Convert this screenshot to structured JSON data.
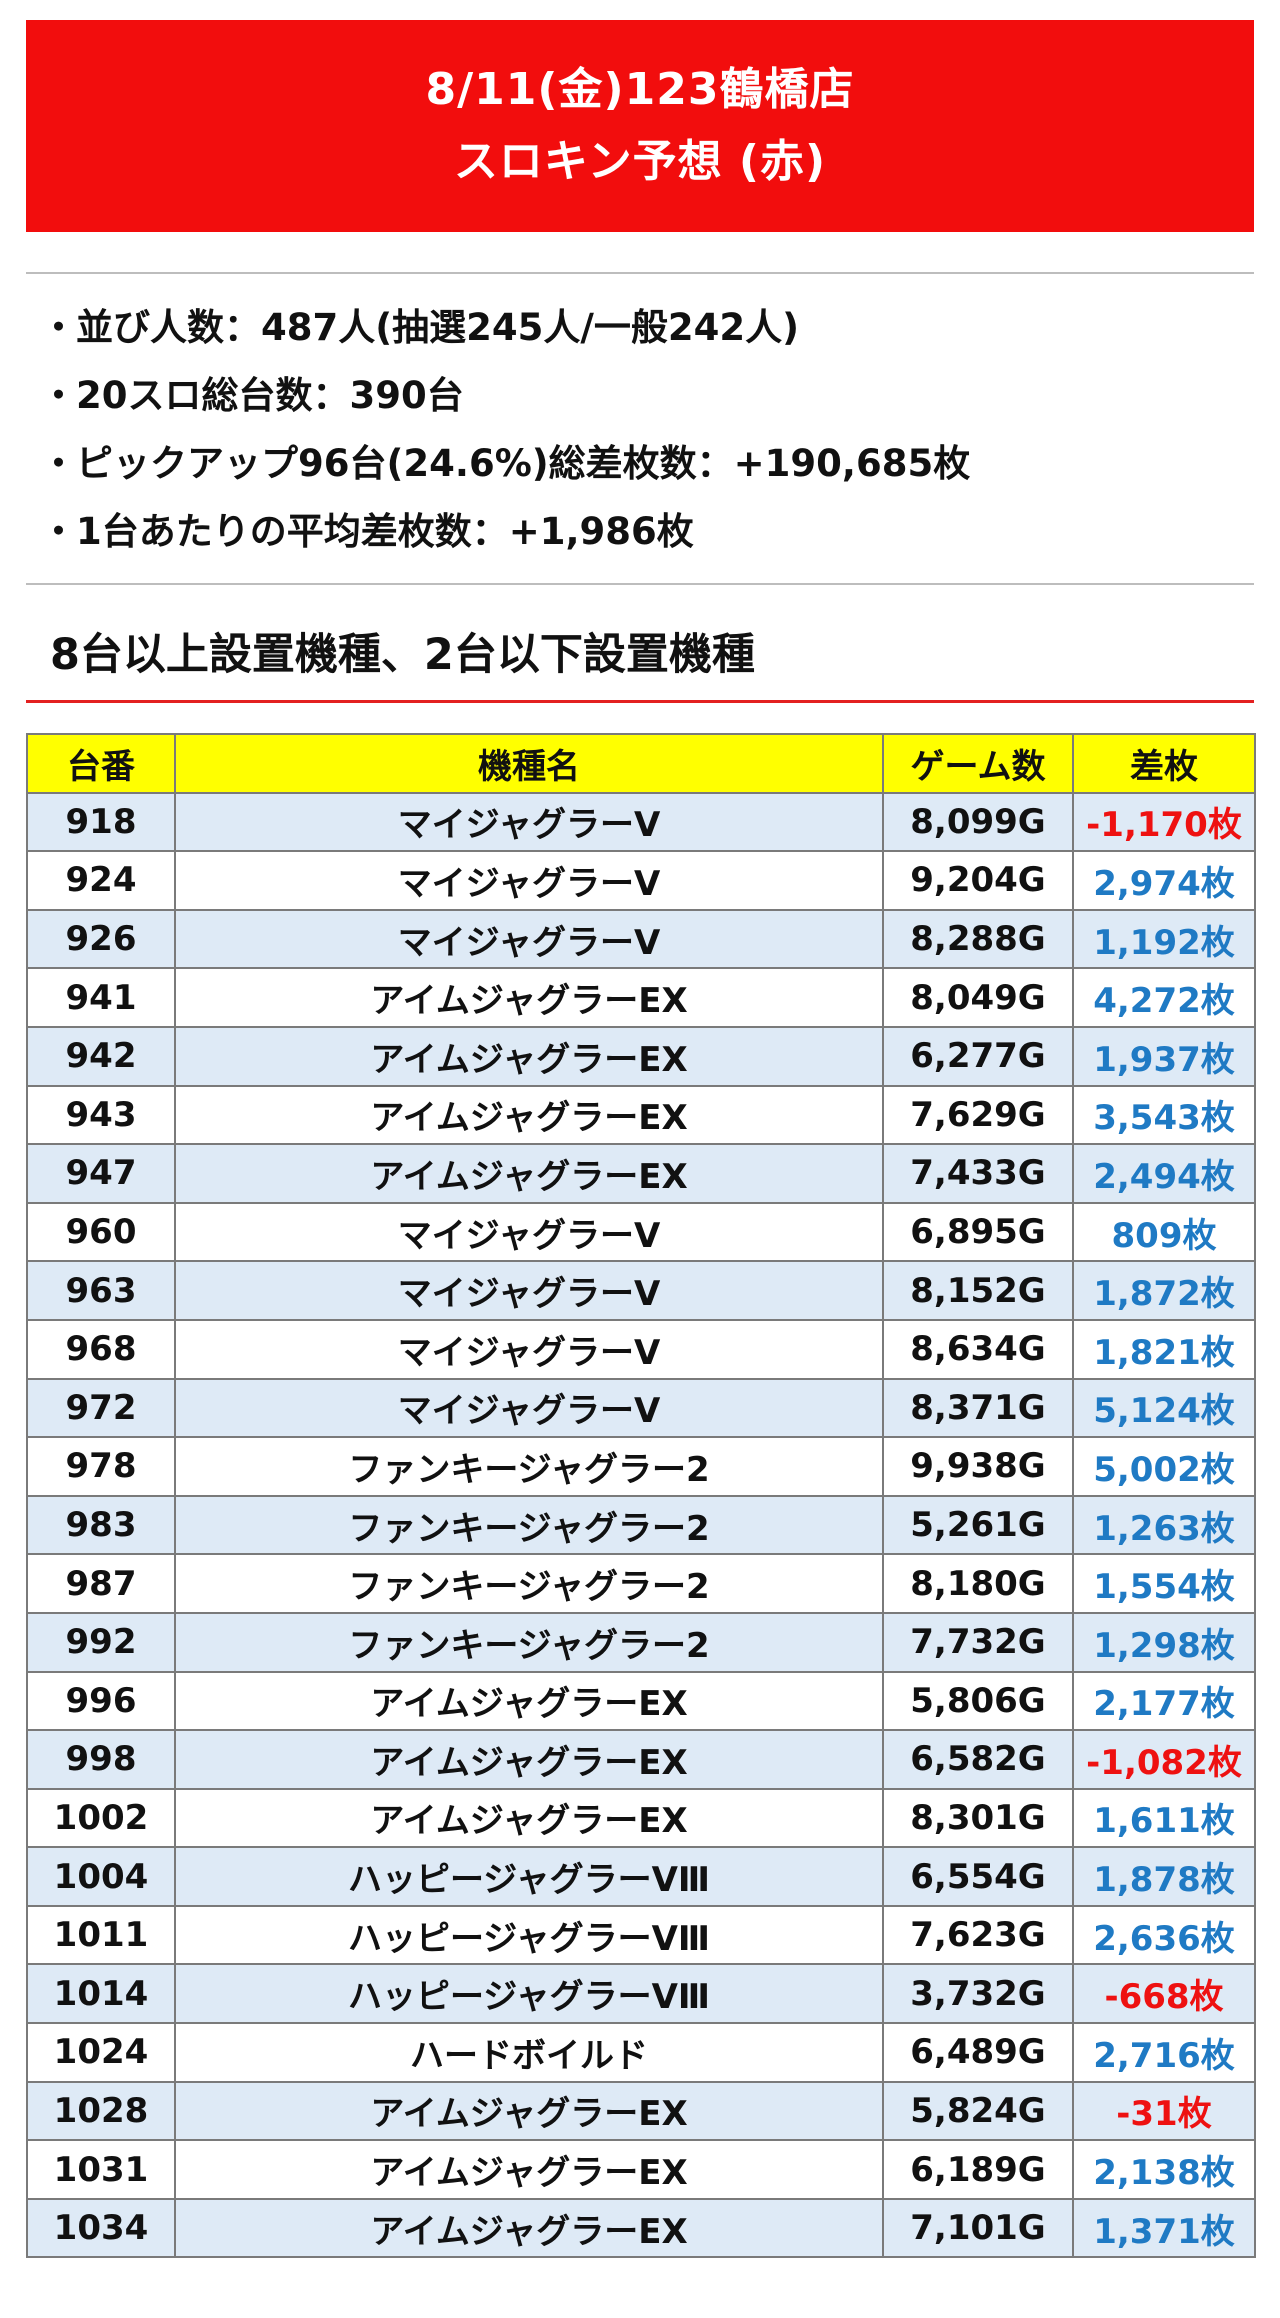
{
  "header": {
    "line1": "8/11(金)123鶴橋店",
    "line2": "スロキン予想 (赤)"
  },
  "stats": [
    {
      "bullet": "・",
      "text": "並び人数：487人(抽選245人/一般242人)"
    },
    {
      "bullet": "・",
      "text": "20スロ総台数：390台"
    },
    {
      "bullet": "・",
      "text": "ピックアップ96台(24.6%)総差枚数：+190,685枚"
    },
    {
      "bullet": "・",
      "text": "1台あたりの平均差枚数：+1,986枚"
    }
  ],
  "section_title": "8台以上設置機種、2台以下設置機種",
  "table": {
    "headers": [
      "台番",
      "機種名",
      "ゲーム数",
      "差枚"
    ],
    "rows": [
      {
        "no": "918",
        "name": "マイジャグラーV",
        "games": "8,099G",
        "diff": "-1,170枚",
        "negative": true
      },
      {
        "no": "924",
        "name": "マイジャグラーV",
        "games": "9,204G",
        "diff": "2,974枚",
        "negative": false
      },
      {
        "no": "926",
        "name": "マイジャグラーV",
        "games": "8,288G",
        "diff": "1,192枚",
        "negative": false
      },
      {
        "no": "941",
        "name": "アイムジャグラーEX",
        "games": "8,049G",
        "diff": "4,272枚",
        "negative": false
      },
      {
        "no": "942",
        "name": "アイムジャグラーEX",
        "games": "6,277G",
        "diff": "1,937枚",
        "negative": false
      },
      {
        "no": "943",
        "name": "アイムジャグラーEX",
        "games": "7,629G",
        "diff": "3,543枚",
        "negative": false
      },
      {
        "no": "947",
        "name": "アイムジャグラーEX",
        "games": "7,433G",
        "diff": "2,494枚",
        "negative": false
      },
      {
        "no": "960",
        "name": "マイジャグラーV",
        "games": "6,895G",
        "diff": "809枚",
        "negative": false
      },
      {
        "no": "963",
        "name": "マイジャグラーV",
        "games": "8,152G",
        "diff": "1,872枚",
        "negative": false
      },
      {
        "no": "968",
        "name": "マイジャグラーV",
        "games": "8,634G",
        "diff": "1,821枚",
        "negative": false
      },
      {
        "no": "972",
        "name": "マイジャグラーV",
        "games": "8,371G",
        "diff": "5,124枚",
        "negative": false
      },
      {
        "no": "978",
        "name": "ファンキージャグラー2",
        "games": "9,938G",
        "diff": "5,002枚",
        "negative": false
      },
      {
        "no": "983",
        "name": "ファンキージャグラー2",
        "games": "5,261G",
        "diff": "1,263枚",
        "negative": false
      },
      {
        "no": "987",
        "name": "ファンキージャグラー2",
        "games": "8,180G",
        "diff": "1,554枚",
        "negative": false
      },
      {
        "no": "992",
        "name": "ファンキージャグラー2",
        "games": "7,732G",
        "diff": "1,298枚",
        "negative": false
      },
      {
        "no": "996",
        "name": "アイムジャグラーEX",
        "games": "5,806G",
        "diff": "2,177枚",
        "negative": false
      },
      {
        "no": "998",
        "name": "アイムジャグラーEX",
        "games": "6,582G",
        "diff": "-1,082枚",
        "negative": true
      },
      {
        "no": "1002",
        "name": "アイムジャグラーEX",
        "games": "8,301G",
        "diff": "1,611枚",
        "negative": false
      },
      {
        "no": "1004",
        "name": "ハッピージャグラーVⅢ",
        "games": "6,554G",
        "diff": "1,878枚",
        "negative": false
      },
      {
        "no": "1011",
        "name": "ハッピージャグラーVⅢ",
        "games": "7,623G",
        "diff": "2,636枚",
        "negative": false
      },
      {
        "no": "1014",
        "name": "ハッピージャグラーVⅢ",
        "games": "3,732G",
        "diff": "-668枚",
        "negative": true
      },
      {
        "no": "1024",
        "name": "ハードボイルド",
        "games": "6,489G",
        "diff": "2,716枚",
        "negative": false
      },
      {
        "no": "1028",
        "name": "アイムジャグラーEX",
        "games": "5,824G",
        "diff": "-31枚",
        "negative": true
      },
      {
        "no": "1031",
        "name": "アイムジャグラーEX",
        "games": "6,189G",
        "diff": "2,138枚",
        "negative": false
      },
      {
        "no": "1034",
        "name": "アイムジャグラーEX",
        "games": "7,101G",
        "diff": "1,371枚",
        "negative": false
      }
    ]
  },
  "colors": {
    "banner": "#f20d0d",
    "header_row": "#ffff00",
    "stripe": "#deeaf6",
    "positive": "#1f7ac4",
    "negative": "#ee1111"
  }
}
